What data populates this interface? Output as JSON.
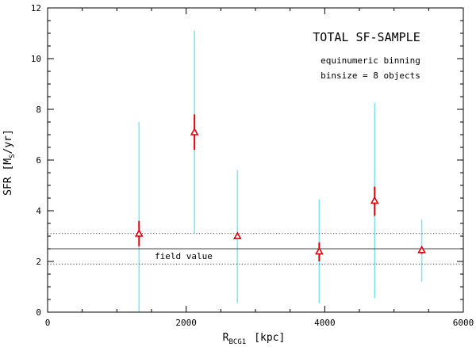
{
  "chart_data": {
    "type": "scatter",
    "xlabel_main": "R",
    "xlabel_sub": "BCG1",
    "xlabel_unit": "[kpc]",
    "ylabel_main": "SFR [M",
    "ylabel_sub": "S",
    "ylabel_unit": "/yr]",
    "xlim": [
      0,
      6000
    ],
    "ylim": [
      0,
      12
    ],
    "xticks": [
      0,
      2000,
      4000,
      6000
    ],
    "yticks": [
      0,
      2,
      4,
      6,
      8,
      10,
      12
    ],
    "annotations": {
      "title": "TOTAL SF-SAMPLE",
      "line1": "equinumeric binning",
      "line2": "binsize = 8 objects",
      "field_label": "field value"
    },
    "field_value": 2.5,
    "field_band": [
      1.9,
      3.1
    ],
    "points": [
      {
        "x": 1320,
        "y": 3.1,
        "err_lo": 2.6,
        "err_hi": 3.6,
        "range_lo": 0.0,
        "range_hi": 7.5
      },
      {
        "x": 2120,
        "y": 7.1,
        "err_lo": 6.4,
        "err_hi": 7.8,
        "range_lo": 3.1,
        "range_hi": 11.1
      },
      {
        "x": 2740,
        "y": 3.0,
        "err_lo": 2.9,
        "err_hi": 3.1,
        "range_lo": 0.35,
        "range_hi": 5.6
      },
      {
        "x": 3920,
        "y": 2.4,
        "err_lo": 2.0,
        "err_hi": 2.75,
        "range_lo": 0.35,
        "range_hi": 4.45
      },
      {
        "x": 4720,
        "y": 4.4,
        "err_lo": 3.8,
        "err_hi": 4.95,
        "range_lo": 0.55,
        "range_hi": 8.25
      },
      {
        "x": 5400,
        "y": 2.45,
        "err_lo": 2.3,
        "err_hi": 2.6,
        "range_lo": 1.2,
        "range_hi": 3.65
      }
    ],
    "colors": {
      "marker": "#e8000b",
      "range": "#7fe6f2",
      "axis": "#000000"
    }
  }
}
